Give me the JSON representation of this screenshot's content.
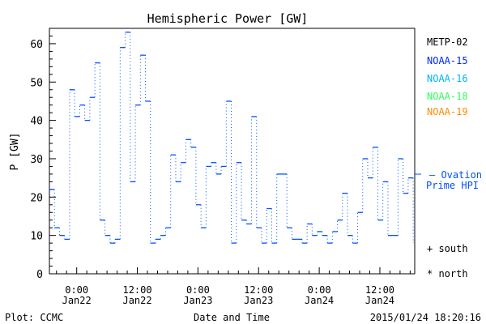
{
  "chart_data": {
    "type": "line",
    "style": "step",
    "title": "Hemispheric Power [GW]",
    "xlabel": "Date and Time",
    "ylabel": "P [GW]",
    "ylim": [
      0,
      64
    ],
    "xlim_hours_from_jan22_0000": [
      -5.4,
      66.9
    ],
    "yticks": [
      0,
      10,
      20,
      30,
      40,
      50,
      60
    ],
    "xticks": [
      {
        "hour": 0,
        "line1": "0:00",
        "line2": "Jan22"
      },
      {
        "hour": 12,
        "line1": "12:00",
        "line2": "Jan22"
      },
      {
        "hour": 24,
        "line1": "0:00",
        "line2": "Jan23"
      },
      {
        "hour": 36,
        "line1": "12:00",
        "line2": "Jan23"
      },
      {
        "hour": 48,
        "line1": "0:00",
        "line2": "Jan24"
      },
      {
        "hour": 60,
        "line1": "12:00",
        "line2": "Jan24"
      }
    ],
    "series": [
      {
        "name": "Ovation Prime HPI",
        "color": "#0050ff",
        "start_hour": -5.4,
        "step_hours": 1,
        "values": [
          22,
          12,
          10,
          9,
          48,
          41,
          44,
          40,
          46,
          55,
          14,
          10,
          8,
          9,
          59,
          63,
          24,
          44,
          57,
          45,
          8,
          9,
          10,
          12,
          31,
          24,
          29,
          35,
          33,
          18,
          12,
          28,
          29,
          26,
          28,
          45,
          8,
          29,
          14,
          13,
          41,
          12,
          8,
          17,
          8,
          26,
          26,
          12,
          9,
          9,
          8,
          13,
          10,
          11,
          10,
          8,
          11,
          14,
          21,
          10,
          8,
          16,
          30,
          25,
          33,
          14,
          24,
          10,
          10,
          30,
          21,
          25
        ]
      }
    ],
    "legend": {
      "position": "right",
      "satellites": [
        {
          "label": "METP-02",
          "color": "#000000"
        },
        {
          "label": "NOAA-15",
          "color": "#0028ff"
        },
        {
          "label": "NOAA-16",
          "color": "#00b4ff"
        },
        {
          "label": "NOAA-18",
          "color": "#30ff60"
        },
        {
          "label": "NOAA-19",
          "color": "#ff8c00"
        }
      ],
      "model_line1": "— Ovation",
      "model_line2": "Prime HPI",
      "south": "+ south",
      "north": "* north"
    },
    "footer": {
      "left": "Plot: CCMC",
      "right": "2015/01/24 18:20:16"
    }
  }
}
